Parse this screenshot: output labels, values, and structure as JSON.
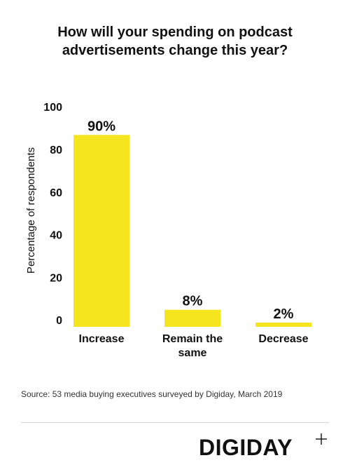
{
  "title_lines": [
    "How will your spending on podcast",
    "advertisements change this year?"
  ],
  "source": "Source: 53 media buying executives surveyed by Digiday,  March 2019",
  "brand": "DIGIDAY",
  "colors": {
    "bar": "#F5E51E",
    "text": "#111111"
  },
  "chart_data": {
    "type": "bar",
    "title": "How will your spending on podcast advertisements change this year?",
    "categories": [
      [
        "Increase"
      ],
      [
        "Remain the",
        "same"
      ],
      [
        "Decrease"
      ]
    ],
    "values": [
      90,
      8,
      2
    ],
    "data_labels": [
      "90%",
      "8%",
      "2%"
    ],
    "ylabel": "Percentage of respondents",
    "xlabel": "",
    "ylim": [
      0,
      100
    ],
    "yticks": [
      0,
      20,
      40,
      60,
      80,
      100
    ],
    "grid": false,
    "legend": "none"
  }
}
